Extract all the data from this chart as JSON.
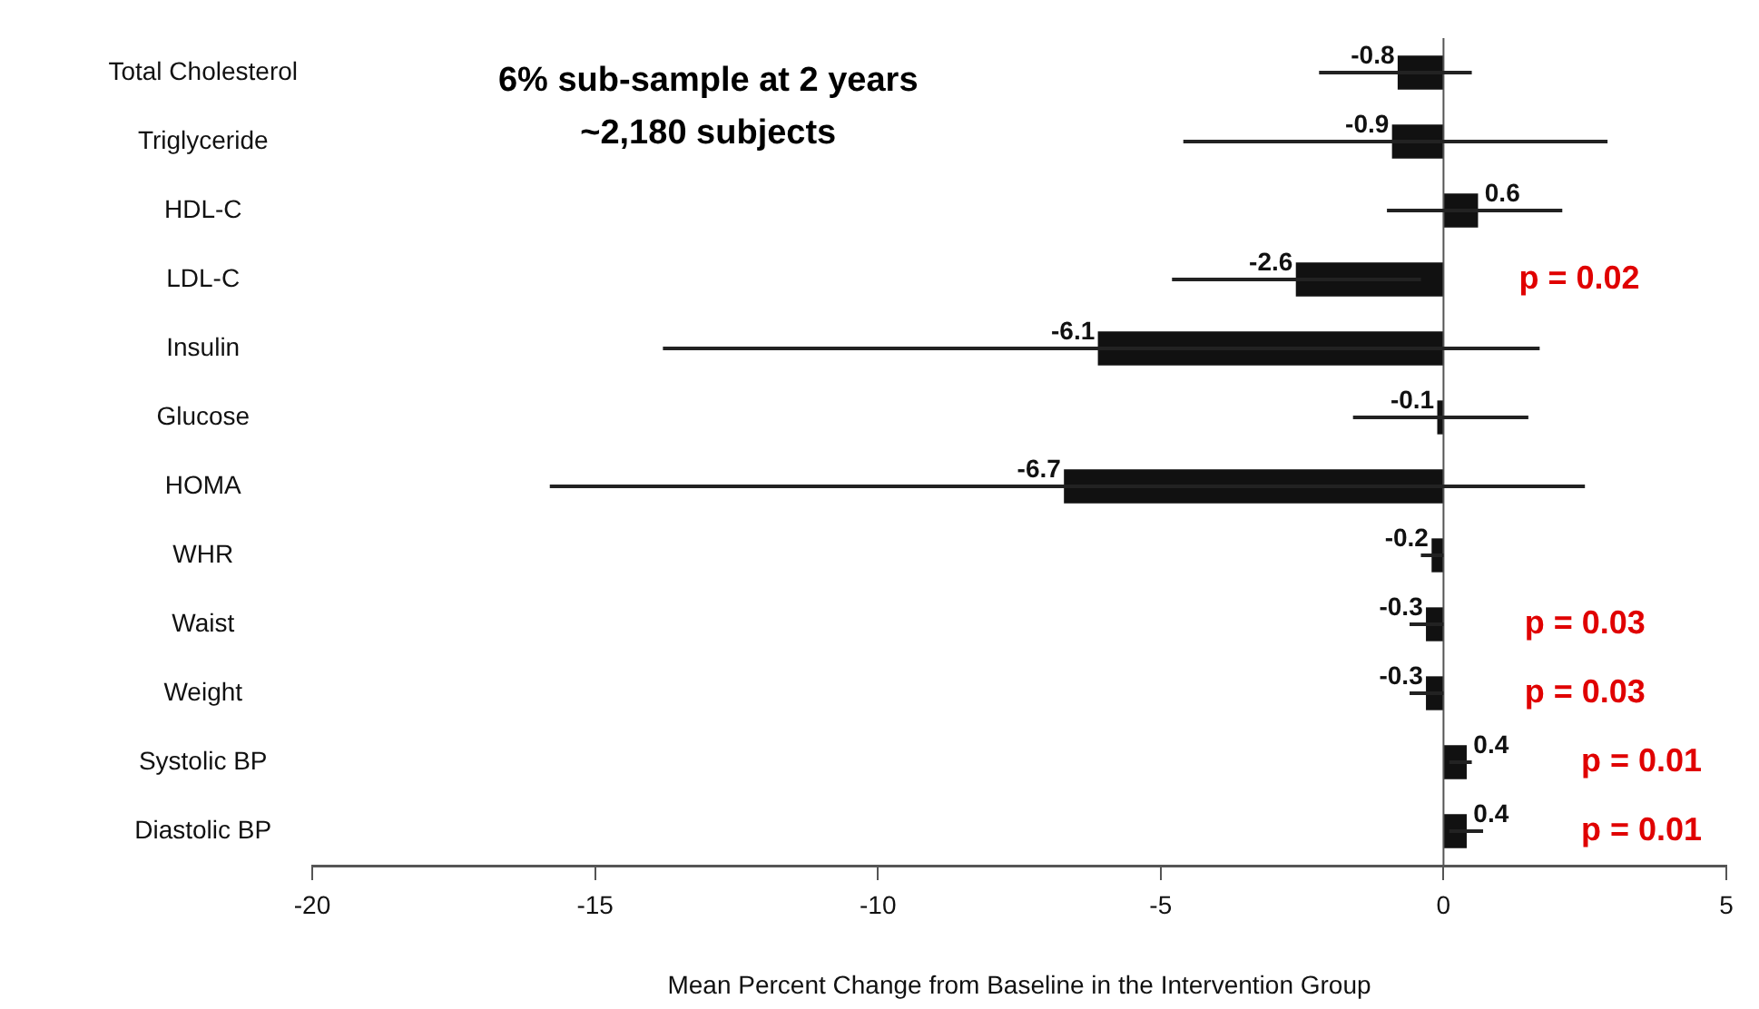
{
  "chart_data": {
    "type": "bar",
    "orientation": "horizontal",
    "title": "6% sub-sample at 2 years",
    "subtitle": "~2,180 subjects",
    "xlabel": "Mean Percent Change from Baseline in the Intervention Group",
    "categories": [
      "Total Cholesterol",
      "Triglyceride",
      "HDL-C",
      "LDL-C",
      "Insulin",
      "Glucose",
      "HOMA",
      "WHR",
      "Waist",
      "Weight",
      "Systolic BP",
      "Diastolic BP"
    ],
    "values": [
      -0.8,
      -0.9,
      0.6,
      -2.6,
      -6.1,
      -0.1,
      -6.7,
      -0.2,
      -0.3,
      -0.3,
      0.4,
      0.4
    ],
    "errors": [
      [
        -2.2,
        0.5
      ],
      [
        -4.6,
        2.9
      ],
      [
        -1.0,
        2.1
      ],
      [
        -4.8,
        -0.4
      ],
      [
        -13.8,
        1.7
      ],
      [
        -1.6,
        1.5
      ],
      [
        -15.8,
        2.5
      ],
      [
        -0.4,
        0.0
      ],
      [
        -0.6,
        0.0
      ],
      [
        -0.6,
        0.0
      ],
      [
        0.1,
        0.5
      ],
      [
        0.1,
        0.7
      ]
    ],
    "color": "#111111",
    "data_labels": true,
    "xlim": [
      -20,
      5
    ],
    "xticks": [
      -20,
      -15,
      -10,
      -5,
      0,
      5
    ],
    "grid": false,
    "legend": false,
    "annotations": [
      "p = 0.02",
      "p = 0.03",
      "p = 0.03",
      "p = 0.01",
      "p = 0.01"
    ]
  }
}
